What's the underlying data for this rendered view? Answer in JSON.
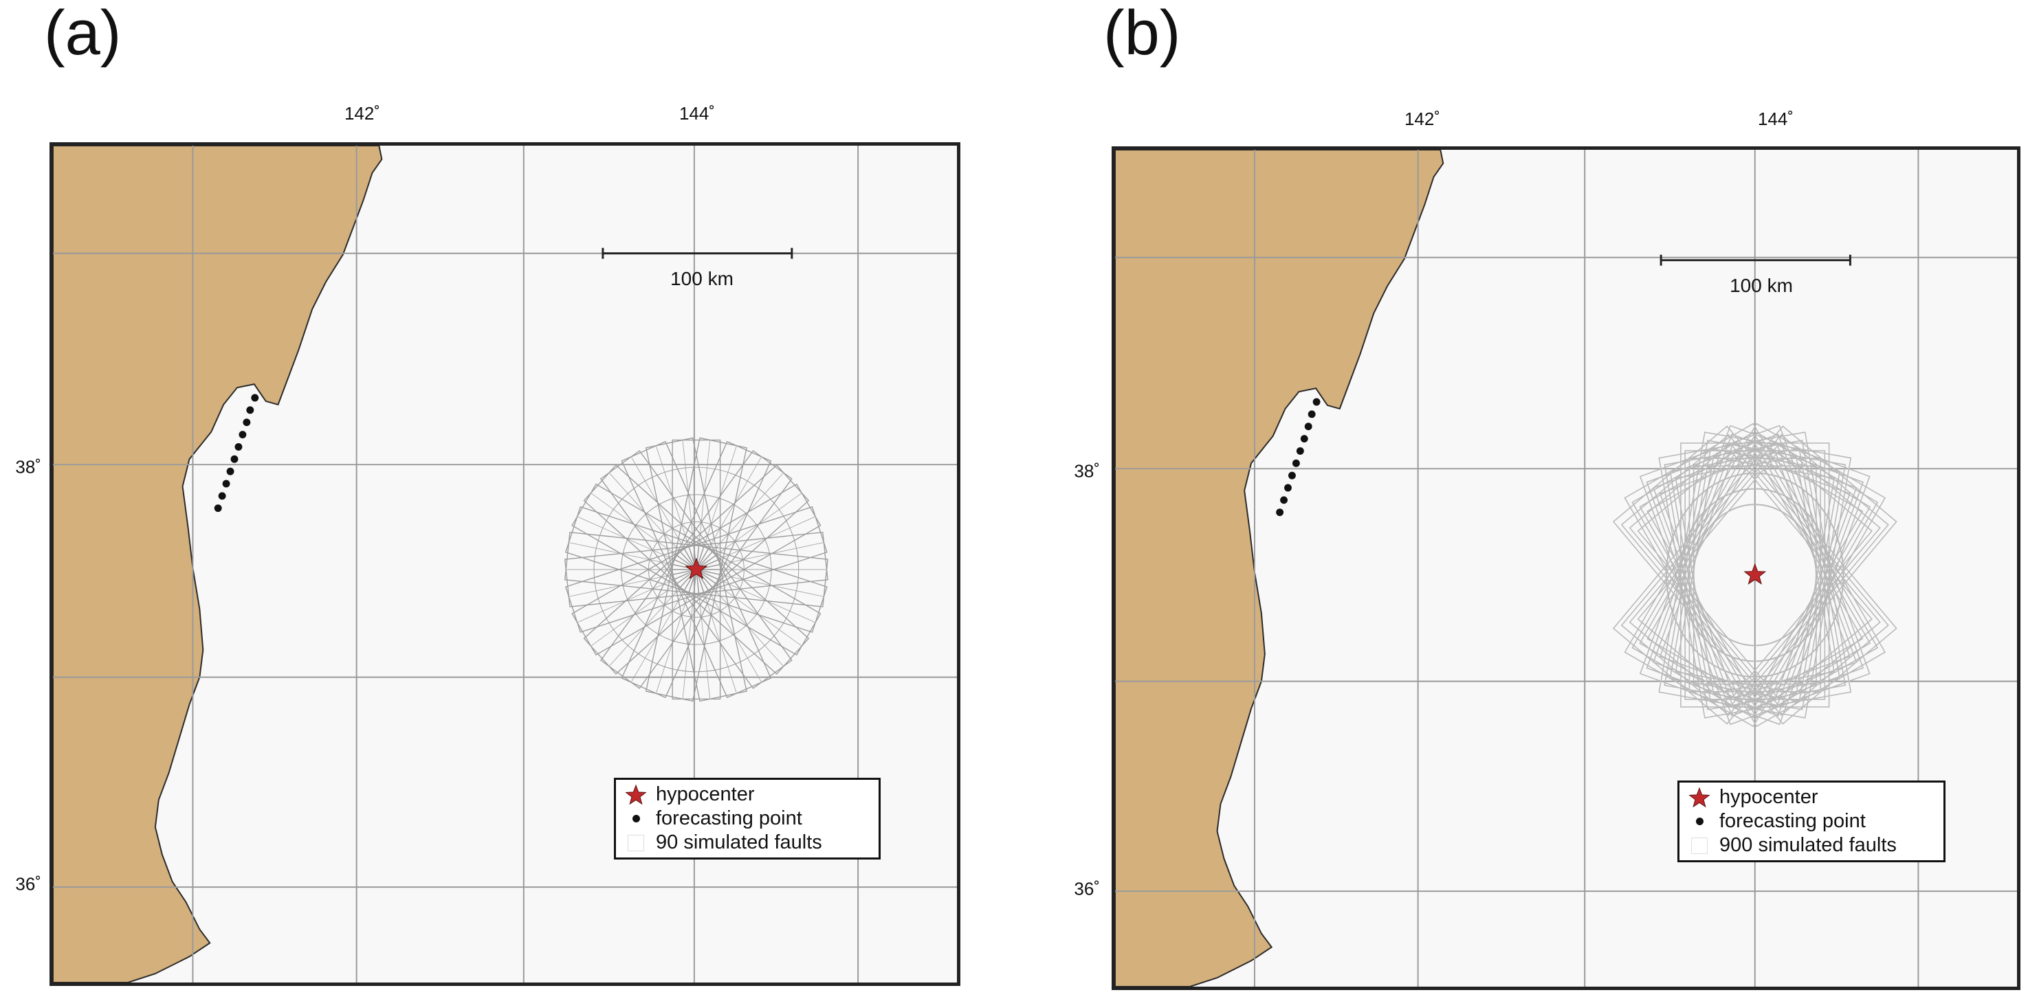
{
  "panels": [
    {
      "id": "a",
      "label": "(a)",
      "lon_ticks": [
        "142˚",
        "144˚"
      ],
      "lat_ticks": [
        "38˚",
        "36˚"
      ],
      "scale_bar": "100 km",
      "legend": {
        "hypocenter": "hypocenter",
        "forecasting_point": "forecasting point",
        "faults": "90 simulated faults"
      }
    },
    {
      "id": "b",
      "label": "(b)",
      "lon_ticks": [
        "142˚",
        "144˚"
      ],
      "lat_ticks": [
        "38˚",
        "36˚"
      ],
      "scale_bar": "100 km",
      "legend": {
        "hypocenter": "hypocenter",
        "forecasting_point": "forecasting point",
        "faults": "900 simulated faults"
      }
    }
  ],
  "colors": {
    "land": "#d4b07c",
    "sea": "#f8f8f8",
    "grid": "#9a9a9a",
    "fault_a": "#9c9c9c",
    "fault_b": "#b9b9b9",
    "hypocenter": "#c0292b",
    "forecasting_point": "#111111"
  },
  "icons": {
    "hypocenter": "star-icon",
    "forecasting_point": "dot-icon",
    "faults": "rectangle-outline-icon"
  }
}
